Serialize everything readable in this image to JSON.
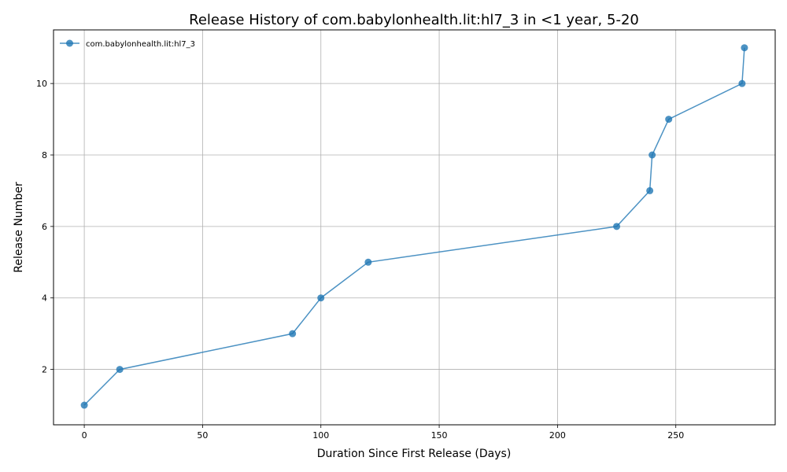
{
  "chart_data": {
    "type": "line",
    "title": "Release History of com.babylonhealth.lit:hl7_3 in <1 year, 5-20",
    "xlabel": "Duration Since First Release (Days)",
    "ylabel": "Release Number",
    "xlim": [
      -13,
      292
    ],
    "ylim": [
      0.45,
      11.5
    ],
    "xticks": [
      0,
      50,
      100,
      150,
      200,
      250
    ],
    "yticks": [
      2,
      4,
      6,
      8,
      10
    ],
    "grid": true,
    "legend_position": "top-left",
    "series": [
      {
        "name": "com.babylonhealth.lit:hl7_3",
        "color": "#1f77b4",
        "x": [
          0,
          15,
          88,
          100,
          120,
          225,
          239,
          240,
          247,
          278,
          279
        ],
        "y": [
          1,
          2,
          3,
          4,
          5,
          6,
          7,
          8,
          9,
          10,
          11
        ]
      }
    ]
  }
}
